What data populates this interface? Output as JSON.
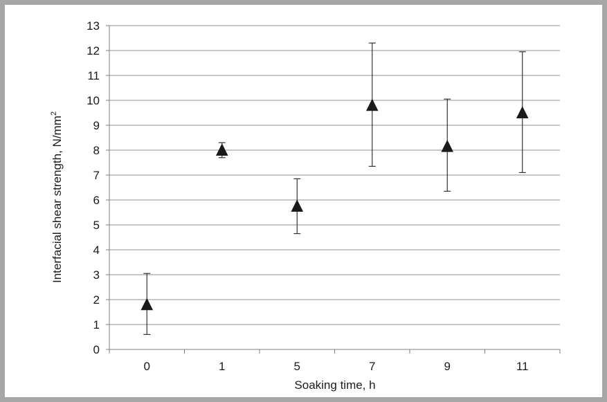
{
  "chart_data": {
    "type": "scatter",
    "title": "",
    "xlabel": "Soaking time, h",
    "ylabel": "Interfacial shear strength, N/mm",
    "ylabel_superscript": "2",
    "categories": [
      "0",
      "1",
      "5",
      "7",
      "9",
      "11"
    ],
    "series": [
      {
        "values": [
          1.8,
          8.0,
          5.75,
          9.8,
          8.15,
          9.5
        ],
        "error_low": [
          0.6,
          7.7,
          4.65,
          7.35,
          6.35,
          7.1
        ],
        "error_high": [
          3.05,
          8.3,
          6.85,
          12.3,
          10.05,
          11.95
        ],
        "marker": "triangle",
        "color": "#1a1a1a"
      }
    ],
    "ylim": [
      0,
      13
    ],
    "yticks": [
      0,
      1,
      2,
      3,
      4,
      5,
      6,
      7,
      8,
      9,
      10,
      11,
      12,
      13
    ],
    "grid": true,
    "legend": "none",
    "colors": {
      "grid": "#8c8c8c",
      "axis": "#7f7f7f",
      "frame": "#a6a6a6",
      "marker": "#1a1a1a"
    }
  }
}
